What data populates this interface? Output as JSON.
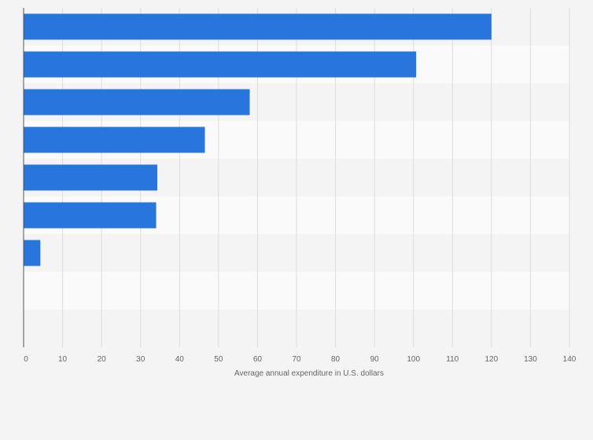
{
  "chart_data": {
    "type": "bar",
    "orientation": "horizontal",
    "categories": [
      "",
      "",
      "",
      "",
      "",
      "",
      "",
      "",
      ""
    ],
    "values": [
      120,
      100.7,
      58,
      46.5,
      34.3,
      34,
      4.3,
      0,
      0
    ],
    "xlabel": "Average annual expenditure in U.S. dollars",
    "ylabel": "",
    "xlim": [
      0,
      140
    ],
    "xticks": [
      0,
      10,
      20,
      30,
      40,
      50,
      60,
      70,
      80,
      90,
      100,
      110,
      120,
      130,
      140
    ],
    "grid": true,
    "legend": "none",
    "bar_color": "#2876dd",
    "band_colors": [
      "#f4f4f4",
      "#fafafa"
    ]
  }
}
